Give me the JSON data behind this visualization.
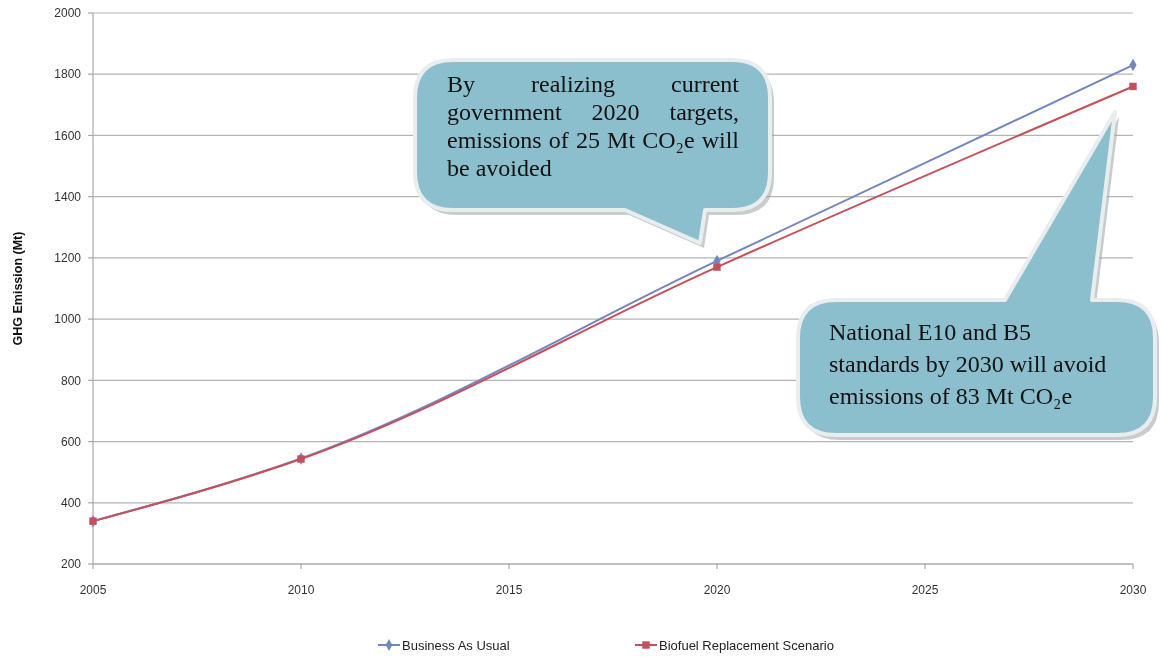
{
  "chart_data": {
    "type": "line",
    "ylabel": "GHG Emission (Mt)",
    "x": [
      2005,
      2010,
      2020,
      2030
    ],
    "series": [
      {
        "name": "Business As Usual",
        "color": "#7585c0",
        "marker": "diamond",
        "values": [
          340,
          545,
          1190,
          1830
        ]
      },
      {
        "name": "Biofuel Replacement Scenario",
        "color": "#c4505c",
        "marker": "square",
        "values": [
          340,
          543,
          1170,
          1760
        ]
      }
    ],
    "xlim": [
      2005,
      2030
    ],
    "xticks": [
      2005,
      2010,
      2015,
      2020,
      2025,
      2030
    ],
    "ylim": [
      200,
      2000
    ],
    "yticks": [
      200,
      400,
      600,
      800,
      1000,
      1200,
      1400,
      1600,
      1800,
      2000
    ],
    "grid": "y",
    "legend": "bottom",
    "annotations": [
      "By realizing current government 2020 targets, emissions of 25 Mt CO₂e will be avoided",
      "National E10 and B5 standards by 2030 will avoid emissions of 83 Mt CO₂e"
    ]
  }
}
